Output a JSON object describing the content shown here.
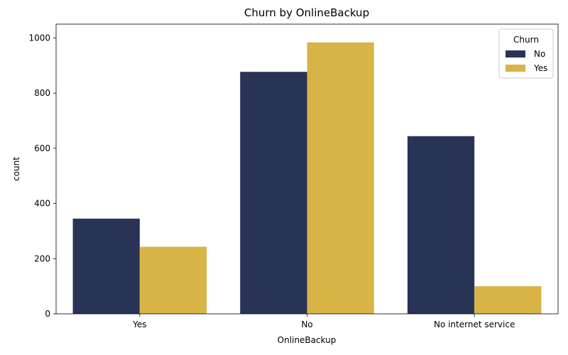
{
  "chart_data": {
    "type": "bar",
    "title": "Churn by OnlineBackup",
    "xlabel": "OnlineBackup",
    "ylabel": "count",
    "categories": [
      "Yes",
      "No",
      "No internet service"
    ],
    "series": [
      {
        "name": "No",
        "values": [
          345,
          877,
          644
        ],
        "color": "#293356"
      },
      {
        "name": "Yes",
        "values": [
          243,
          984,
          100
        ],
        "color": "#d8b447"
      }
    ],
    "ylim": [
      0,
      1050
    ],
    "yticks": [
      0,
      200,
      400,
      600,
      800,
      1000
    ],
    "legend": {
      "title": "Churn",
      "position": "top-right"
    },
    "grid": false
  }
}
